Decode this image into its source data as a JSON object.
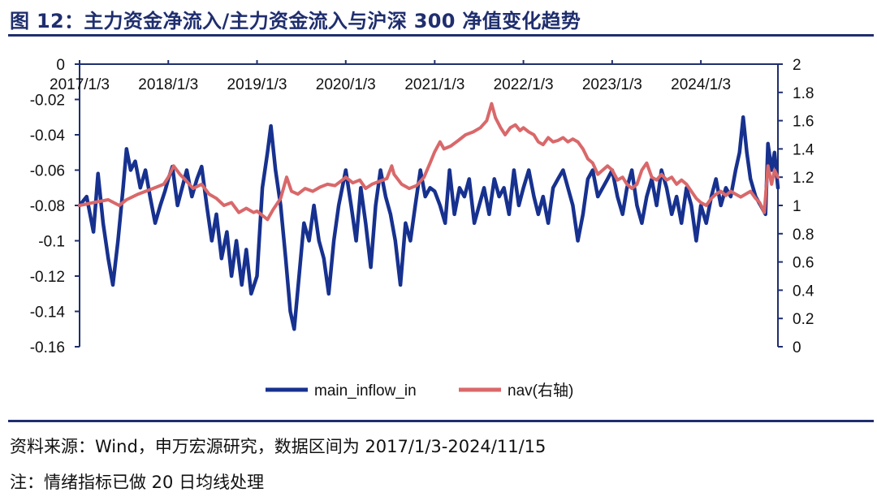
{
  "header": {
    "title": "图 12：主力资金净流入/主力资金流入与沪深 300 净值变化趋势"
  },
  "footer": {
    "source": "资料来源：Wind，申万宏源研究，数据区间为 2017/1/3-2024/11/15",
    "note": "注：情绪指标已做 20 日均线处理"
  },
  "colors": {
    "main_inflow": "#17318f",
    "nav": "#d9686a",
    "axis": "#1f2e6e",
    "title": "#1f2e6e"
  },
  "chart_data": {
    "type": "line",
    "x_ticks": [
      "2017/1/3",
      "2018/1/3",
      "2019/1/3",
      "2020/1/3",
      "2021/1/3",
      "2022/1/3",
      "2023/1/3",
      "2024/1/3"
    ],
    "x_range": [
      "2017/1/3",
      "2024/11/15"
    ],
    "y_left": {
      "range": [
        -0.16,
        0
      ],
      "ticks": [
        "0",
        "-0.02",
        "-0.04",
        "-0.06",
        "-0.08",
        "-0.1",
        "-0.12",
        "-0.14",
        "-0.16"
      ]
    },
    "y_right": {
      "range": [
        0,
        2
      ],
      "ticks": [
        "2",
        "1.8",
        "1.6",
        "1.4",
        "1.2",
        "1",
        "0.8",
        "0.6",
        "0.4",
        "0.2",
        "0"
      ]
    },
    "legend_position": "bottom",
    "series": [
      {
        "name": "main_inflow_in",
        "axis": "left",
        "points": [
          [
            "2017/1/3",
            -0.08
          ],
          [
            "2017/2/1",
            -0.075
          ],
          [
            "2017/3/1",
            -0.095
          ],
          [
            "2017/3/20",
            -0.062
          ],
          [
            "2017/4/10",
            -0.09
          ],
          [
            "2017/5/1",
            -0.11
          ],
          [
            "2017/5/20",
            -0.125
          ],
          [
            "2017/6/10",
            -0.1
          ],
          [
            "2017/7/1",
            -0.07
          ],
          [
            "2017/7/15",
            -0.048
          ],
          [
            "2017/8/1",
            -0.06
          ],
          [
            "2017/8/20",
            -0.055
          ],
          [
            "2017/9/10",
            -0.07
          ],
          [
            "2017/10/1",
            -0.06
          ],
          [
            "2017/10/20",
            -0.075
          ],
          [
            "2017/11/10",
            -0.09
          ],
          [
            "2017/12/1",
            -0.08
          ],
          [
            "2017/12/20",
            -0.072
          ],
          [
            "2018/1/3",
            -0.065
          ],
          [
            "2018/1/20",
            -0.058
          ],
          [
            "2018/2/10",
            -0.08
          ],
          [
            "2018/3/1",
            -0.07
          ],
          [
            "2018/3/20",
            -0.06
          ],
          [
            "2018/4/10",
            -0.075
          ],
          [
            "2018/5/1",
            -0.065
          ],
          [
            "2018/5/20",
            -0.058
          ],
          [
            "2018/6/10",
            -0.08
          ],
          [
            "2018/7/1",
            -0.1
          ],
          [
            "2018/7/20",
            -0.085
          ],
          [
            "2018/8/10",
            -0.11
          ],
          [
            "2018/9/1",
            -0.095
          ],
          [
            "2018/9/20",
            -0.12
          ],
          [
            "2018/10/10",
            -0.1
          ],
          [
            "2018/11/1",
            -0.125
          ],
          [
            "2018/11/20",
            -0.105
          ],
          [
            "2018/12/10",
            -0.13
          ],
          [
            "2019/1/3",
            -0.12
          ],
          [
            "2019/1/25",
            -0.07
          ],
          [
            "2019/2/15",
            -0.05
          ],
          [
            "2019/3/1",
            -0.035
          ],
          [
            "2019/3/20",
            -0.06
          ],
          [
            "2019/4/10",
            -0.08
          ],
          [
            "2019/5/1",
            -0.11
          ],
          [
            "2019/5/20",
            -0.14
          ],
          [
            "2019/6/5",
            -0.15
          ],
          [
            "2019/6/25",
            -0.12
          ],
          [
            "2019/7/15",
            -0.09
          ],
          [
            "2019/8/5",
            -0.1
          ],
          [
            "2019/8/25",
            -0.08
          ],
          [
            "2019/9/15",
            -0.1
          ],
          [
            "2019/10/5",
            -0.11
          ],
          [
            "2019/10/25",
            -0.13
          ],
          [
            "2019/11/15",
            -0.1
          ],
          [
            "2019/12/5",
            -0.08
          ],
          [
            "2020/1/3",
            -0.06
          ],
          [
            "2020/1/25",
            -0.08
          ],
          [
            "2020/2/15",
            -0.1
          ],
          [
            "2020/3/5",
            -0.07
          ],
          [
            "2020/3/25",
            -0.09
          ],
          [
            "2020/4/15",
            -0.115
          ],
          [
            "2020/5/5",
            -0.08
          ],
          [
            "2020/5/25",
            -0.06
          ],
          [
            "2020/6/15",
            -0.075
          ],
          [
            "2020/7/5",
            -0.085
          ],
          [
            "2020/7/25",
            -0.1
          ],
          [
            "2020/8/15",
            -0.125
          ],
          [
            "2020/9/5",
            -0.09
          ],
          [
            "2020/9/25",
            -0.1
          ],
          [
            "2020/10/15",
            -0.08
          ],
          [
            "2020/11/5",
            -0.06
          ],
          [
            "2020/11/25",
            -0.075
          ],
          [
            "2020/12/15",
            -0.07
          ],
          [
            "2021/1/3",
            -0.072
          ],
          [
            "2021/1/25",
            -0.08
          ],
          [
            "2021/2/15",
            -0.09
          ],
          [
            "2021/3/5",
            -0.06
          ],
          [
            "2021/3/25",
            -0.085
          ],
          [
            "2021/4/15",
            -0.07
          ],
          [
            "2021/5/5",
            -0.075
          ],
          [
            "2021/5/25",
            -0.065
          ],
          [
            "2021/6/15",
            -0.09
          ],
          [
            "2021/7/5",
            -0.08
          ],
          [
            "2021/7/25",
            -0.07
          ],
          [
            "2021/8/15",
            -0.085
          ],
          [
            "2021/9/5",
            -0.065
          ],
          [
            "2021/9/25",
            -0.075
          ],
          [
            "2021/10/15",
            -0.07
          ],
          [
            "2021/11/5",
            -0.085
          ],
          [
            "2021/11/25",
            -0.06
          ],
          [
            "2021/12/15",
            -0.08
          ],
          [
            "2022/1/3",
            -0.07
          ],
          [
            "2022/1/25",
            -0.06
          ],
          [
            "2022/2/15",
            -0.075
          ],
          [
            "2022/3/5",
            -0.085
          ],
          [
            "2022/3/25",
            -0.075
          ],
          [
            "2022/4/15",
            -0.09
          ],
          [
            "2022/5/5",
            -0.07
          ],
          [
            "2022/5/25",
            -0.065
          ],
          [
            "2022/6/15",
            -0.06
          ],
          [
            "2022/7/5",
            -0.07
          ],
          [
            "2022/7/25",
            -0.08
          ],
          [
            "2022/8/15",
            -0.1
          ],
          [
            "2022/9/5",
            -0.085
          ],
          [
            "2022/9/25",
            -0.065
          ],
          [
            "2022/10/15",
            -0.06
          ],
          [
            "2022/11/5",
            -0.075
          ],
          [
            "2022/11/25",
            -0.07
          ],
          [
            "2022/12/15",
            -0.065
          ],
          [
            "2023/1/3",
            -0.06
          ],
          [
            "2023/1/25",
            -0.075
          ],
          [
            "2023/2/15",
            -0.085
          ],
          [
            "2023/3/5",
            -0.07
          ],
          [
            "2023/3/25",
            -0.06
          ],
          [
            "2023/4/15",
            -0.08
          ],
          [
            "2023/5/5",
            -0.09
          ],
          [
            "2023/5/25",
            -0.075
          ],
          [
            "2023/6/15",
            -0.065
          ],
          [
            "2023/7/5",
            -0.08
          ],
          [
            "2023/7/25",
            -0.06
          ],
          [
            "2023/8/15",
            -0.07
          ],
          [
            "2023/9/5",
            -0.085
          ],
          [
            "2023/9/25",
            -0.075
          ],
          [
            "2023/10/15",
            -0.09
          ],
          [
            "2023/11/5",
            -0.07
          ],
          [
            "2023/11/25",
            -0.08
          ],
          [
            "2023/12/15",
            -0.1
          ],
          [
            "2024/1/3",
            -0.08
          ],
          [
            "2024/1/25",
            -0.09
          ],
          [
            "2024/2/15",
            -0.075
          ],
          [
            "2024/3/5",
            -0.065
          ],
          [
            "2024/3/25",
            -0.08
          ],
          [
            "2024/4/15",
            -0.07
          ],
          [
            "2024/5/5",
            -0.075
          ],
          [
            "2024/5/25",
            -0.06
          ],
          [
            "2024/6/10",
            -0.05
          ],
          [
            "2024/6/25",
            -0.03
          ],
          [
            "2024/7/10",
            -0.05
          ],
          [
            "2024/7/25",
            -0.065
          ],
          [
            "2024/8/15",
            -0.075
          ],
          [
            "2024/9/5",
            -0.08
          ],
          [
            "2024/9/25",
            -0.085
          ],
          [
            "2024/10/5",
            -0.045
          ],
          [
            "2024/10/20",
            -0.06
          ],
          [
            "2024/11/1",
            -0.05
          ],
          [
            "2024/11/15",
            -0.07
          ]
        ]
      },
      {
        "name": "nav(右轴)",
        "axis": "right",
        "points": [
          [
            "2017/1/3",
            1.0
          ],
          [
            "2017/3/1",
            1.02
          ],
          [
            "2017/5/1",
            1.04
          ],
          [
            "2017/6/15",
            1.0
          ],
          [
            "2017/7/15",
            1.04
          ],
          [
            "2017/9/1",
            1.08
          ],
          [
            "2017/11/1",
            1.12
          ],
          [
            "2017/12/15",
            1.15
          ],
          [
            "2018/1/3",
            1.2
          ],
          [
            "2018/1/25",
            1.28
          ],
          [
            "2018/2/20",
            1.22
          ],
          [
            "2018/3/15",
            1.18
          ],
          [
            "2018/4/15",
            1.12
          ],
          [
            "2018/5/20",
            1.15
          ],
          [
            "2018/6/20",
            1.08
          ],
          [
            "2018/7/20",
            1.05
          ],
          [
            "2018/8/20",
            1.0
          ],
          [
            "2018/9/20",
            1.02
          ],
          [
            "2018/10/20",
            0.95
          ],
          [
            "2018/11/20",
            0.98
          ],
          [
            "2018/12/20",
            0.95
          ],
          [
            "2019/1/3",
            0.96
          ],
          [
            "2019/2/1",
            0.92
          ],
          [
            "2019/2/15",
            0.9
          ],
          [
            "2019/3/10",
            0.97
          ],
          [
            "2019/4/10",
            1.05
          ],
          [
            "2019/5/5",
            1.2
          ],
          [
            "2019/5/25",
            1.1
          ],
          [
            "2019/6/20",
            1.08
          ],
          [
            "2019/7/20",
            1.12
          ],
          [
            "2019/8/20",
            1.1
          ],
          [
            "2019/9/20",
            1.13
          ],
          [
            "2019/10/20",
            1.15
          ],
          [
            "2019/11/20",
            1.14
          ],
          [
            "2019/12/20",
            1.18
          ],
          [
            "2020/1/3",
            1.2
          ],
          [
            "2020/2/1",
            1.16
          ],
          [
            "2020/3/1",
            1.18
          ],
          [
            "2020/3/25",
            1.12
          ],
          [
            "2020/4/20",
            1.15
          ],
          [
            "2020/5/20",
            1.17
          ],
          [
            "2020/6/20",
            1.19
          ],
          [
            "2020/7/10",
            1.28
          ],
          [
            "2020/7/20",
            1.22
          ],
          [
            "2020/8/20",
            1.15
          ],
          [
            "2020/9/20",
            1.12
          ],
          [
            "2020/10/20",
            1.14
          ],
          [
            "2020/11/20",
            1.2
          ],
          [
            "2020/12/15",
            1.3
          ],
          [
            "2021/1/3",
            1.38
          ],
          [
            "2021/1/25",
            1.45
          ],
          [
            "2021/2/10",
            1.4
          ],
          [
            "2021/3/10",
            1.42
          ],
          [
            "2021/4/10",
            1.46
          ],
          [
            "2021/5/10",
            1.5
          ],
          [
            "2021/6/10",
            1.52
          ],
          [
            "2021/7/10",
            1.55
          ],
          [
            "2021/8/5",
            1.6
          ],
          [
            "2021/8/25",
            1.72
          ],
          [
            "2021/9/10",
            1.62
          ],
          [
            "2021/10/1",
            1.55
          ],
          [
            "2021/10/20",
            1.5
          ],
          [
            "2021/11/10",
            1.55
          ],
          [
            "2021/12/1",
            1.57
          ],
          [
            "2021/12/20",
            1.53
          ],
          [
            "2022/1/3",
            1.55
          ],
          [
            "2022/1/25",
            1.52
          ],
          [
            "2022/2/15",
            1.5
          ],
          [
            "2022/3/5",
            1.45
          ],
          [
            "2022/3/25",
            1.43
          ],
          [
            "2022/4/15",
            1.48
          ],
          [
            "2022/5/5",
            1.45
          ],
          [
            "2022/5/25",
            1.46
          ],
          [
            "2022/6/15",
            1.48
          ],
          [
            "2022/7/5",
            1.45
          ],
          [
            "2022/7/25",
            1.47
          ],
          [
            "2022/8/15",
            1.45
          ],
          [
            "2022/9/5",
            1.4
          ],
          [
            "2022/9/25",
            1.33
          ],
          [
            "2022/10/15",
            1.3
          ],
          [
            "2022/11/5",
            1.22
          ],
          [
            "2022/11/25",
            1.25
          ],
          [
            "2022/12/15",
            1.28
          ],
          [
            "2023/1/3",
            1.25
          ],
          [
            "2023/1/25",
            1.18
          ],
          [
            "2023/2/15",
            1.2
          ],
          [
            "2023/3/5",
            1.15
          ],
          [
            "2023/3/25",
            1.12
          ],
          [
            "2023/4/15",
            1.15
          ],
          [
            "2023/5/5",
            1.25
          ],
          [
            "2023/5/25",
            1.3
          ],
          [
            "2023/6/15",
            1.2
          ],
          [
            "2023/7/5",
            1.18
          ],
          [
            "2023/7/25",
            1.22
          ],
          [
            "2023/8/15",
            1.18
          ],
          [
            "2023/9/5",
            1.2
          ],
          [
            "2023/9/25",
            1.15
          ],
          [
            "2023/10/15",
            1.18
          ],
          [
            "2023/11/5",
            1.15
          ],
          [
            "2023/11/25",
            1.1
          ],
          [
            "2023/12/15",
            1.05
          ],
          [
            "2024/1/3",
            1.02
          ],
          [
            "2024/1/25",
            1.0
          ],
          [
            "2024/2/15",
            1.05
          ],
          [
            "2024/3/5",
            1.08
          ],
          [
            "2024/3/25",
            1.1
          ],
          [
            "2024/4/15",
            1.07
          ],
          [
            "2024/5/5",
            1.1
          ],
          [
            "2024/5/25",
            1.08
          ],
          [
            "2024/6/15",
            1.06
          ],
          [
            "2024/7/5",
            1.08
          ],
          [
            "2024/7/25",
            1.1
          ],
          [
            "2024/8/15",
            1.05
          ],
          [
            "2024/9/1",
            1.02
          ],
          [
            "2024/9/20",
            0.95
          ],
          [
            "2024/10/5",
            1.28
          ],
          [
            "2024/10/20",
            1.15
          ],
          [
            "2024/11/1",
            1.25
          ],
          [
            "2024/11/15",
            1.2
          ]
        ]
      }
    ]
  }
}
